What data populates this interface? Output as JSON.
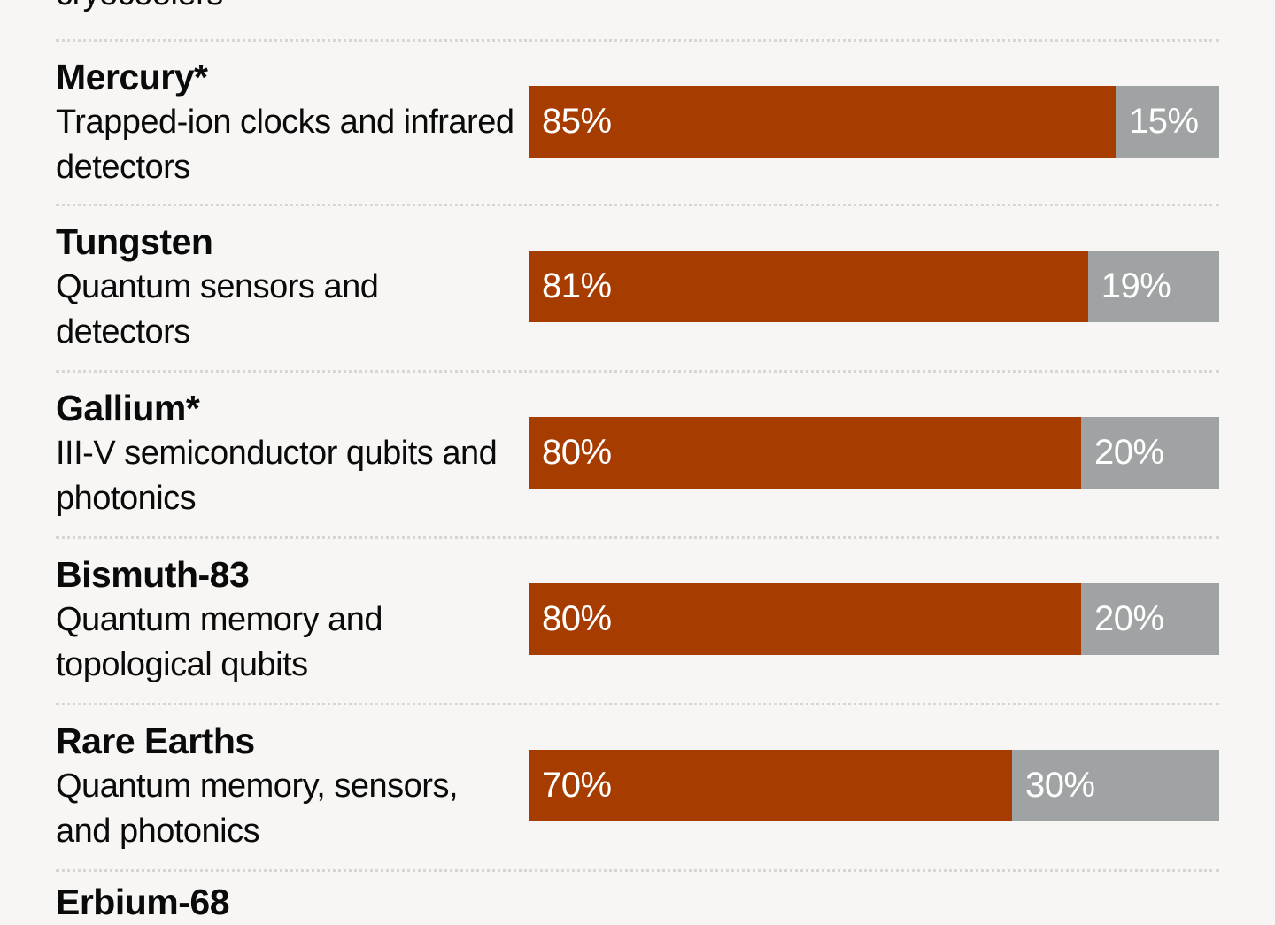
{
  "chart_data": {
    "type": "bar",
    "orientation": "horizontal",
    "stacked": true,
    "colors": {
      "primary": "#A63C00",
      "secondary": "#A0A3A3",
      "background": "#F7F6F4"
    },
    "partial_top_text": "cryocoolers",
    "partial_bottom_title": "Erbium-68",
    "rows": [
      {
        "title": "Mercury*",
        "description": "Trapped-ion clocks and infrared detectors",
        "values": [
          85,
          15
        ],
        "labels": [
          "85%",
          "15%"
        ]
      },
      {
        "title": "Tungsten",
        "description": "Quantum sensors and detectors",
        "values": [
          81,
          19
        ],
        "labels": [
          "81%",
          "19%"
        ]
      },
      {
        "title": "Gallium*",
        "description": "III-V semiconductor qubits and photonics",
        "values": [
          80,
          20
        ],
        "labels": [
          "80%",
          "20%"
        ]
      },
      {
        "title": "Bismuth-83",
        "description": "Quantum memory and topological qubits",
        "values": [
          80,
          20
        ],
        "labels": [
          "80%",
          "20%"
        ]
      },
      {
        "title": "Rare Earths",
        "description": "Quantum memory, sensors, and photonics",
        "values": [
          70,
          30
        ],
        "labels": [
          "70%",
          "30%"
        ]
      }
    ]
  }
}
